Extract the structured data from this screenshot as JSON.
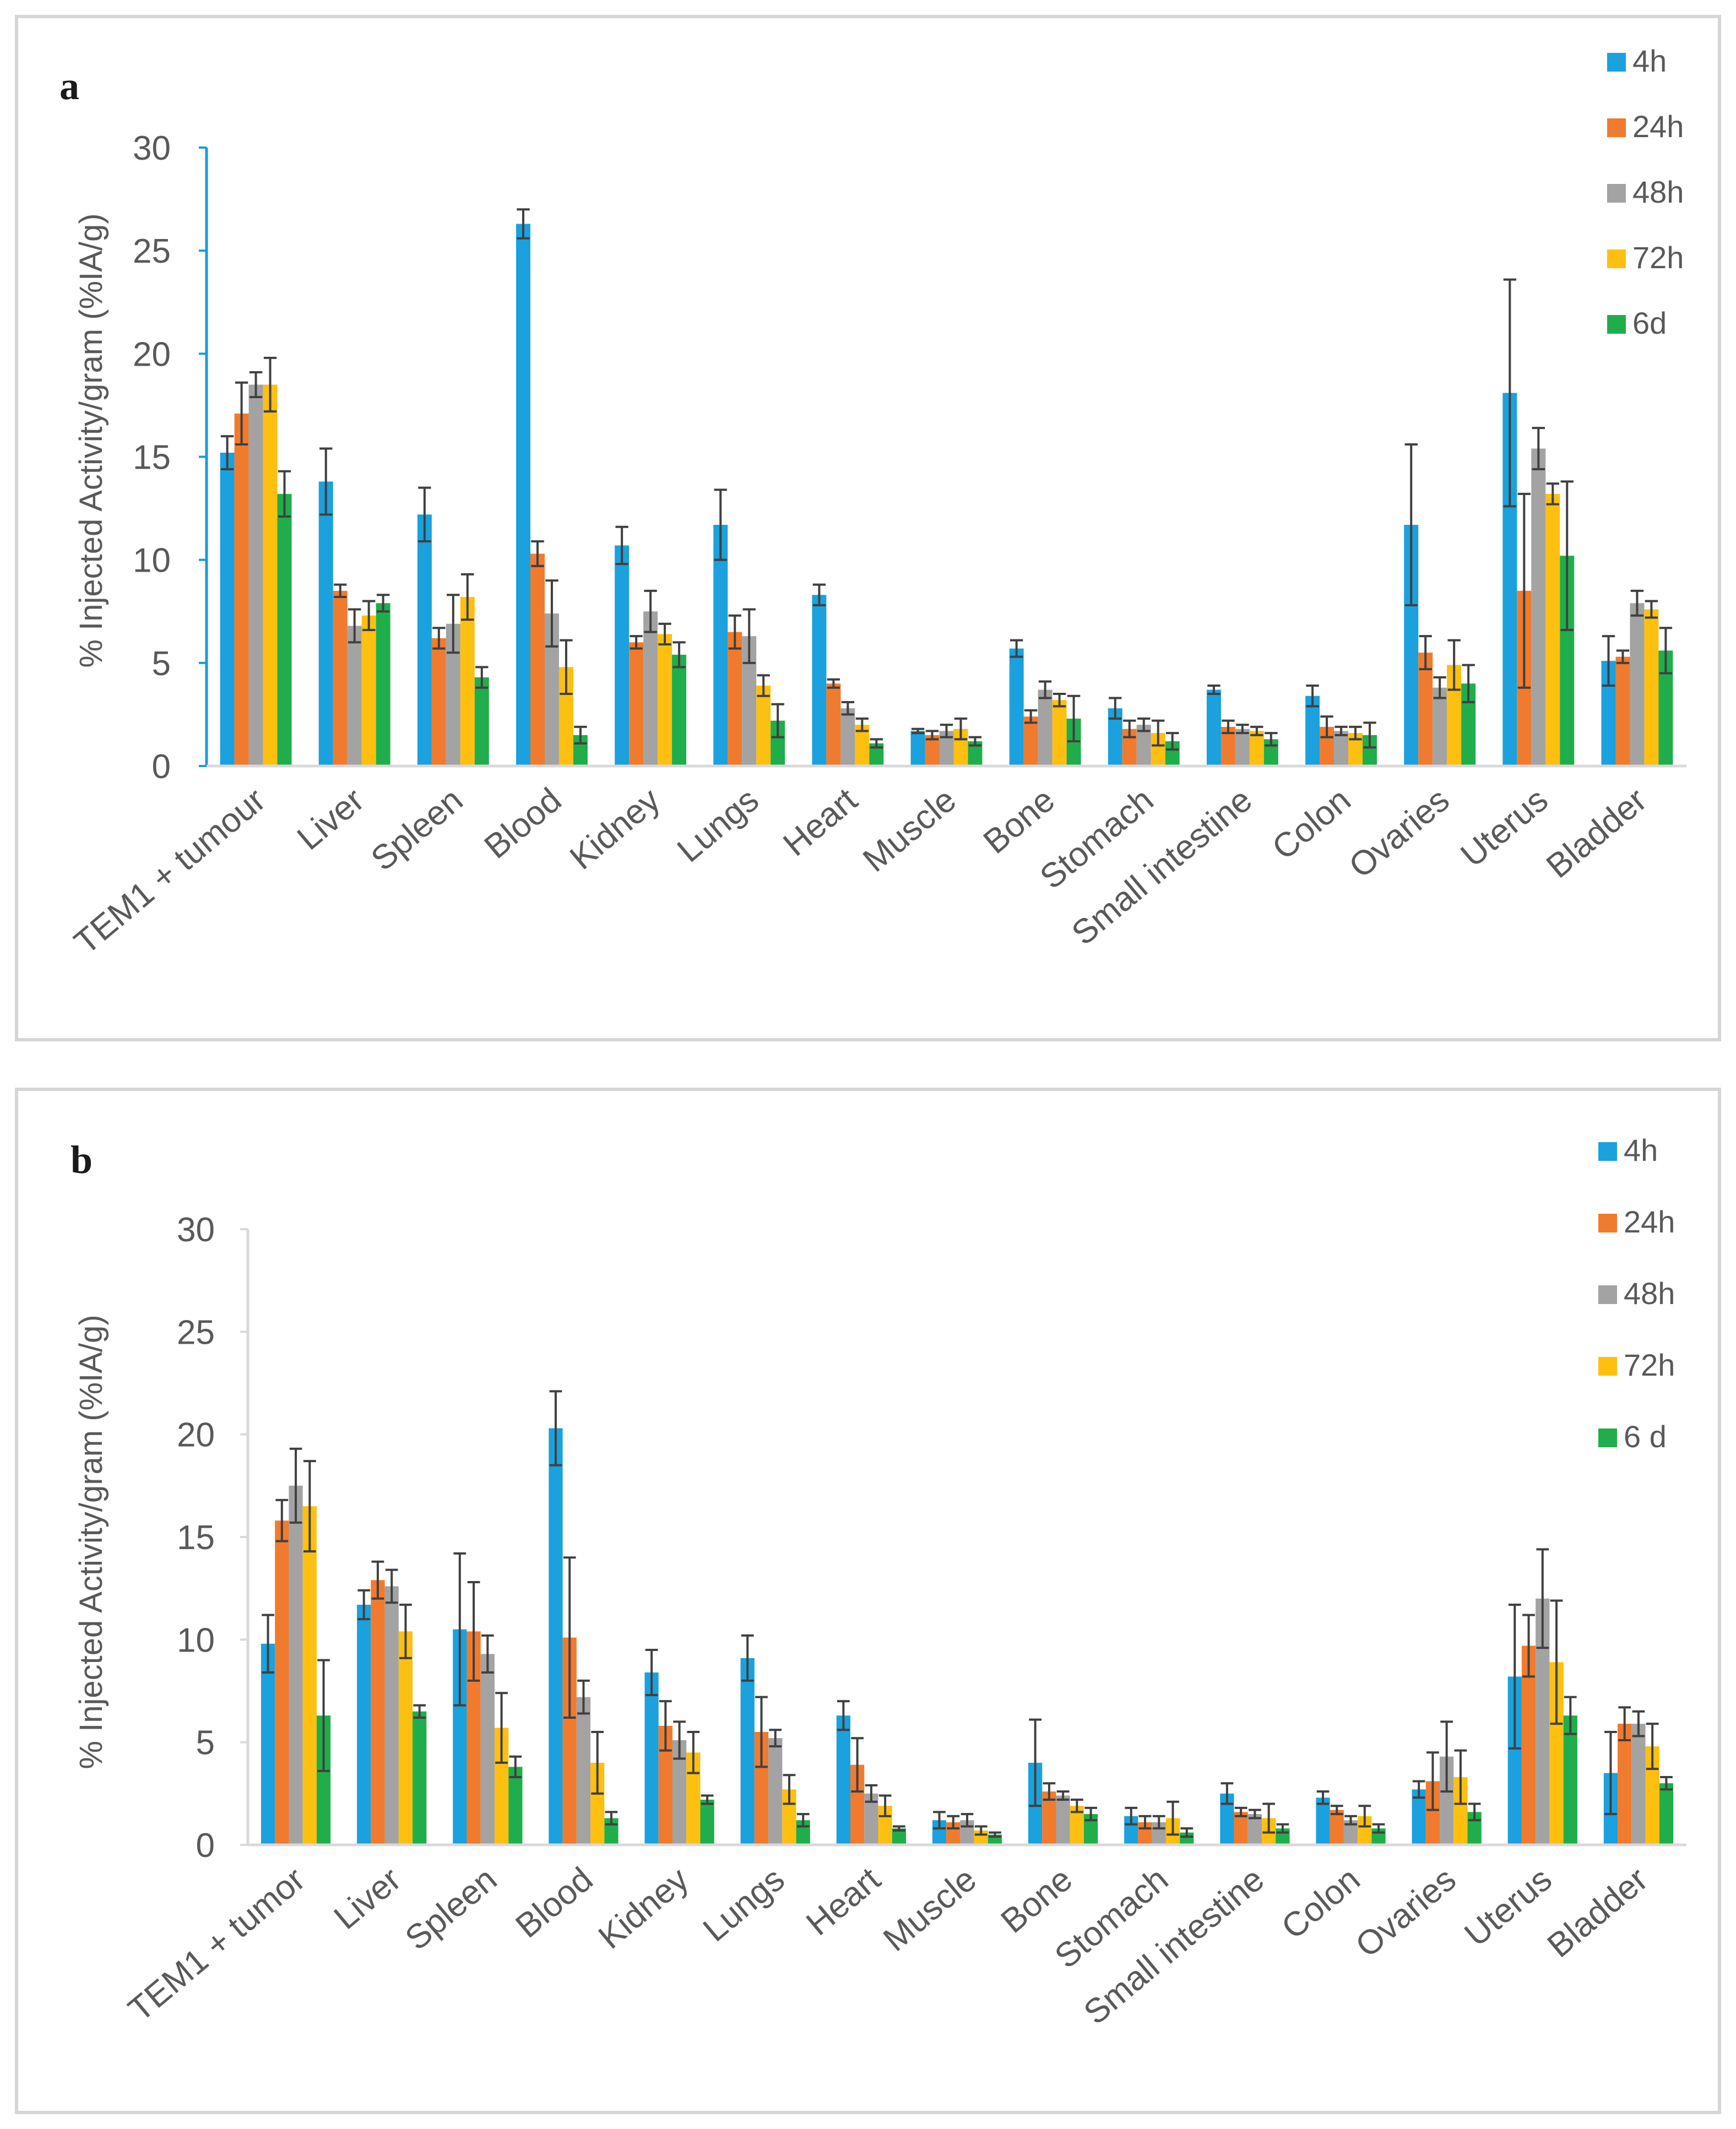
{
  "chart_data": [
    {
      "type": "bar",
      "panel_label": "a",
      "ylabel": "% Injected Activity/gram (%IA/g)",
      "ylim": [
        0,
        30
      ],
      "yticks": [
        0,
        5,
        10,
        15,
        20,
        25,
        30
      ],
      "legend_position": "top-right",
      "colors": [
        "#1ba1dd",
        "#f07b2e",
        "#a3a3a3",
        "#fdc010",
        "#1fae4b"
      ],
      "categories": [
        "TEM1 + tumour",
        "Liver",
        "Spleen",
        "Blood",
        "Kidney",
        "Lungs",
        "Heart",
        "Muscle",
        "Bone",
        "Stomach",
        "Small intestine",
        "Colon",
        "Ovaries",
        "Uterus",
        "Bladder"
      ],
      "series": [
        {
          "name": "4h",
          "values": [
            15.2,
            13.8,
            12.2,
            26.3,
            10.7,
            11.7,
            8.3,
            1.7,
            5.7,
            2.8,
            3.7,
            3.4,
            11.7,
            18.1,
            5.1
          ],
          "errors": [
            0.8,
            1.6,
            1.3,
            0.7,
            0.9,
            1.7,
            0.5,
            0.1,
            0.4,
            0.5,
            0.2,
            0.5,
            3.9,
            5.5,
            1.2
          ]
        },
        {
          "name": "24h",
          "values": [
            17.1,
            8.5,
            6.2,
            10.3,
            6.0,
            6.5,
            4.0,
            1.5,
            2.4,
            1.8,
            1.9,
            1.9,
            5.5,
            8.5,
            5.3
          ],
          "errors": [
            1.5,
            0.3,
            0.5,
            0.6,
            0.3,
            0.8,
            0.2,
            0.2,
            0.3,
            0.4,
            0.3,
            0.5,
            0.8,
            4.7,
            0.3
          ]
        },
        {
          "name": "48h",
          "values": [
            18.5,
            6.8,
            6.9,
            7.4,
            7.5,
            6.3,
            2.8,
            1.7,
            3.7,
            2.0,
            1.8,
            1.7,
            3.8,
            15.4,
            7.9
          ],
          "errors": [
            0.6,
            0.8,
            1.4,
            1.6,
            1.0,
            1.3,
            0.3,
            0.3,
            0.4,
            0.3,
            0.2,
            0.2,
            0.5,
            1.0,
            0.6
          ]
        },
        {
          "name": "72h",
          "values": [
            18.5,
            7.3,
            8.2,
            4.8,
            6.4,
            3.9,
            2.0,
            1.8,
            3.2,
            1.6,
            1.7,
            1.6,
            4.9,
            13.2,
            7.6
          ],
          "errors": [
            1.3,
            0.7,
            1.1,
            1.3,
            0.5,
            0.5,
            0.3,
            0.5,
            0.3,
            0.6,
            0.2,
            0.3,
            1.2,
            0.5,
            0.4
          ]
        },
        {
          "name": "6d",
          "values": [
            13.2,
            7.9,
            4.3,
            1.5,
            5.4,
            2.2,
            1.1,
            1.2,
            2.3,
            1.2,
            1.3,
            1.5,
            4.0,
            10.2,
            5.6
          ],
          "errors": [
            1.1,
            0.4,
            0.5,
            0.4,
            0.6,
            0.8,
            0.2,
            0.2,
            1.1,
            0.4,
            0.3,
            0.6,
            0.9,
            3.6,
            1.1
          ]
        }
      ]
    },
    {
      "type": "bar",
      "panel_label": "b",
      "ylabel": "% Injected Activity/gram (%IA/g)",
      "ylim": [
        0,
        30
      ],
      "yticks": [
        0,
        5,
        10,
        15,
        20,
        25,
        30
      ],
      "legend_position": "top-right",
      "colors": [
        "#1ba1dd",
        "#f07b2e",
        "#a3a3a3",
        "#fdc010",
        "#1fae4b"
      ],
      "categories": [
        "TEM1 + tumor",
        "Liver",
        "Spleen",
        "Blood",
        "Kidney",
        "Lungs",
        "Heart",
        "Muscle",
        "Bone",
        "Stomach",
        "Small intestine",
        "Colon",
        "Ovaries",
        "Uterus",
        "Bladder"
      ],
      "series": [
        {
          "name": "4h",
          "values": [
            9.8,
            11.7,
            10.5,
            20.3,
            8.4,
            9.1,
            6.3,
            1.2,
            4.0,
            1.4,
            2.5,
            2.3,
            2.7,
            8.2,
            3.5
          ],
          "errors": [
            1.4,
            0.7,
            3.7,
            1.8,
            1.1,
            1.1,
            0.7,
            0.4,
            2.1,
            0.4,
            0.5,
            0.3,
            0.4,
            3.5,
            2.0
          ]
        },
        {
          "name": "24h",
          "values": [
            15.8,
            12.9,
            10.4,
            10.1,
            5.8,
            5.5,
            3.9,
            1.1,
            2.6,
            1.1,
            1.6,
            1.7,
            3.1,
            9.7,
            5.9
          ],
          "errors": [
            1.0,
            0.9,
            2.4,
            3.9,
            1.2,
            1.7,
            1.3,
            0.3,
            0.4,
            0.3,
            0.2,
            0.2,
            1.4,
            1.5,
            0.8
          ]
        },
        {
          "name": "48h",
          "values": [
            17.5,
            12.6,
            9.3,
            7.2,
            5.1,
            5.2,
            2.5,
            1.2,
            2.4,
            1.1,
            1.5,
            1.2,
            4.3,
            12.0,
            5.9
          ],
          "errors": [
            1.8,
            0.8,
            0.9,
            0.8,
            0.9,
            0.4,
            0.4,
            0.3,
            0.2,
            0.3,
            0.2,
            0.2,
            1.7,
            2.4,
            0.6
          ]
        },
        {
          "name": "72h",
          "values": [
            16.5,
            10.4,
            5.7,
            4.0,
            4.5,
            2.7,
            1.9,
            0.7,
            1.9,
            1.3,
            1.3,
            1.4,
            3.3,
            8.9,
            4.8
          ],
          "errors": [
            2.2,
            1.3,
            1.7,
            1.5,
            1.0,
            0.7,
            0.5,
            0.2,
            0.3,
            0.8,
            0.7,
            0.5,
            1.3,
            3.0,
            1.1
          ]
        },
        {
          "name": "6 d",
          "values": [
            6.3,
            6.5,
            3.8,
            1.3,
            2.2,
            1.2,
            0.8,
            0.5,
            1.5,
            0.6,
            0.8,
            0.8,
            1.6,
            6.3,
            3.0
          ],
          "errors": [
            2.7,
            0.3,
            0.5,
            0.3,
            0.2,
            0.3,
            0.1,
            0.1,
            0.3,
            0.2,
            0.2,
            0.2,
            0.4,
            0.9,
            0.3
          ]
        }
      ]
    }
  ]
}
